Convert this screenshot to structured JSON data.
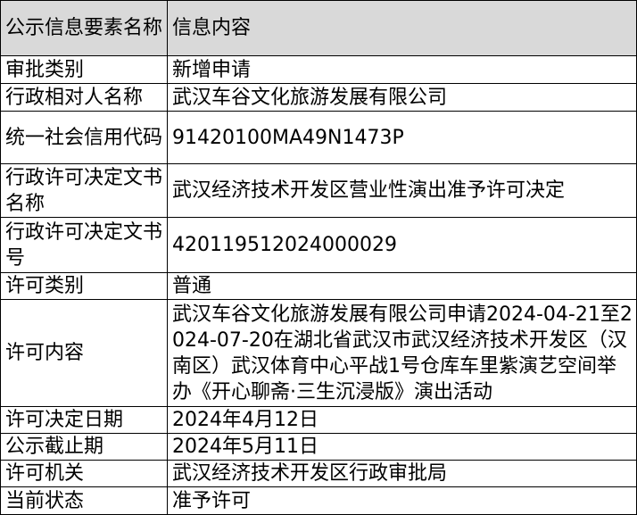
{
  "table": {
    "header": [
      "公示信息要素名称",
      "信息内容"
    ],
    "rows": [
      [
        "审批类别",
        "新增申请"
      ],
      [
        "行政相对人名称",
        "武汉车谷文化旅游发展有限公司"
      ],
      [
        "统一社会信用代码",
        "91420100MA49N1473P"
      ],
      [
        "行政许可决定文书名称",
        "武汉经济技术开发区营业性演出准予许可决定"
      ],
      [
        "行政许可决定文书号",
        "420119512024000029"
      ],
      [
        "许可类别",
        "普通"
      ],
      [
        "许可内容",
        "武汉车谷文化旅游发展有限公司申请2024-04-21至2024-07-20在湖北省武汉市武汉经济技术开发区（汉南区）武汉体育中心平战1号仓库车里紫演艺空间举办《开心聊斋·三生沉浸版》演出活动"
      ],
      [
        "许可决定日期",
        "2024年4月12日"
      ],
      [
        "公示截止期",
        "2024年5月11日"
      ],
      [
        "许可机关",
        "武汉经济技术开发区行政审批局"
      ],
      [
        "当前状态",
        "准予许可"
      ]
    ]
  }
}
